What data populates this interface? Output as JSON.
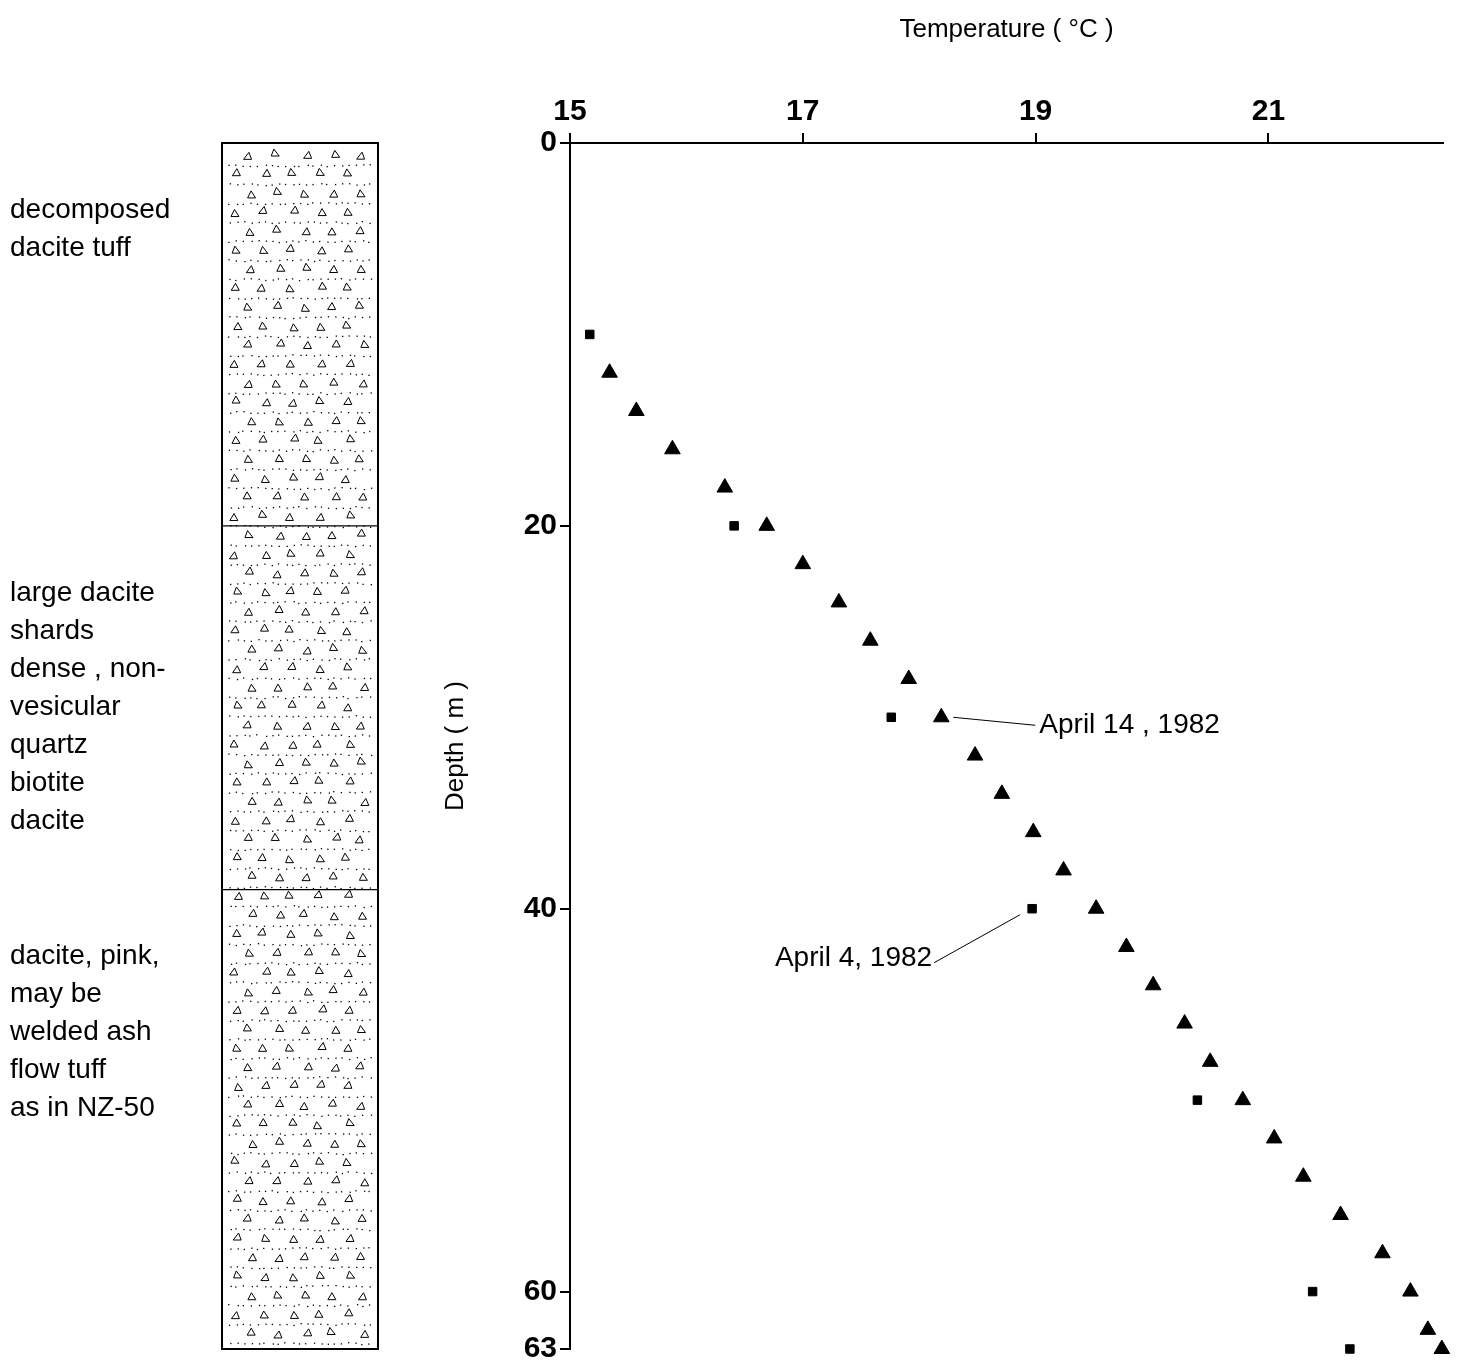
{
  "chart_data": {
    "type": "scatter",
    "x_label": "Temperature ( °C )",
    "y_label": "Depth ( m )",
    "xlim": [
      15,
      22.5
    ],
    "xticks": [
      15,
      17,
      19,
      21
    ],
    "ylim": [
      0,
      63
    ],
    "yticks": [
      0,
      20,
      40,
      60,
      63
    ],
    "grid": false,
    "series": [
      {
        "name": "April 4, 1982",
        "color": "#000000",
        "marker": "square",
        "x": [
          15.17,
          16.41,
          17.76,
          18.97,
          20.39,
          21.38,
          21.7
        ],
        "values": [
          10,
          20,
          30,
          40,
          50,
          60,
          63
        ]
      },
      {
        "name": "April 14 , 1982",
        "color": "#000000",
        "marker": "triangle",
        "x": [
          15.34,
          15.57,
          15.88,
          16.33,
          16.69,
          17.0,
          17.31,
          17.58,
          17.91,
          18.19,
          18.48,
          18.71,
          18.98,
          19.24,
          19.52,
          19.78,
          20.01,
          20.28,
          20.5,
          20.78,
          21.05,
          21.3,
          21.62,
          21.98,
          22.22,
          22.37,
          22.49
        ],
        "values": [
          12,
          14,
          16,
          18,
          20,
          22,
          24,
          26,
          28,
          30,
          32,
          34,
          36,
          38,
          40,
          42,
          44,
          46,
          48,
          50,
          52,
          54,
          56,
          58,
          60,
          62,
          63
        ]
      }
    ],
    "annotations": [
      {
        "series": "April 14 , 1982",
        "y": 30
      },
      {
        "series": "April 4, 1982",
        "y": 40
      }
    ]
  },
  "lithology": [
    {
      "top": 0,
      "bottom": 20,
      "lines": [
        "decomposed",
        "dacite tuff"
      ]
    },
    {
      "top": 20,
      "bottom": 39,
      "lines": [
        "large dacite",
        "shards",
        "dense , non-",
        "vesicular",
        "quartz",
        "biotite",
        "dacite"
      ]
    },
    {
      "top": 39,
      "bottom": 63,
      "lines": [
        "dacite, pink,",
        "may be",
        "welded ash",
        "flow tuff",
        "as in NZ-50"
      ]
    }
  ]
}
